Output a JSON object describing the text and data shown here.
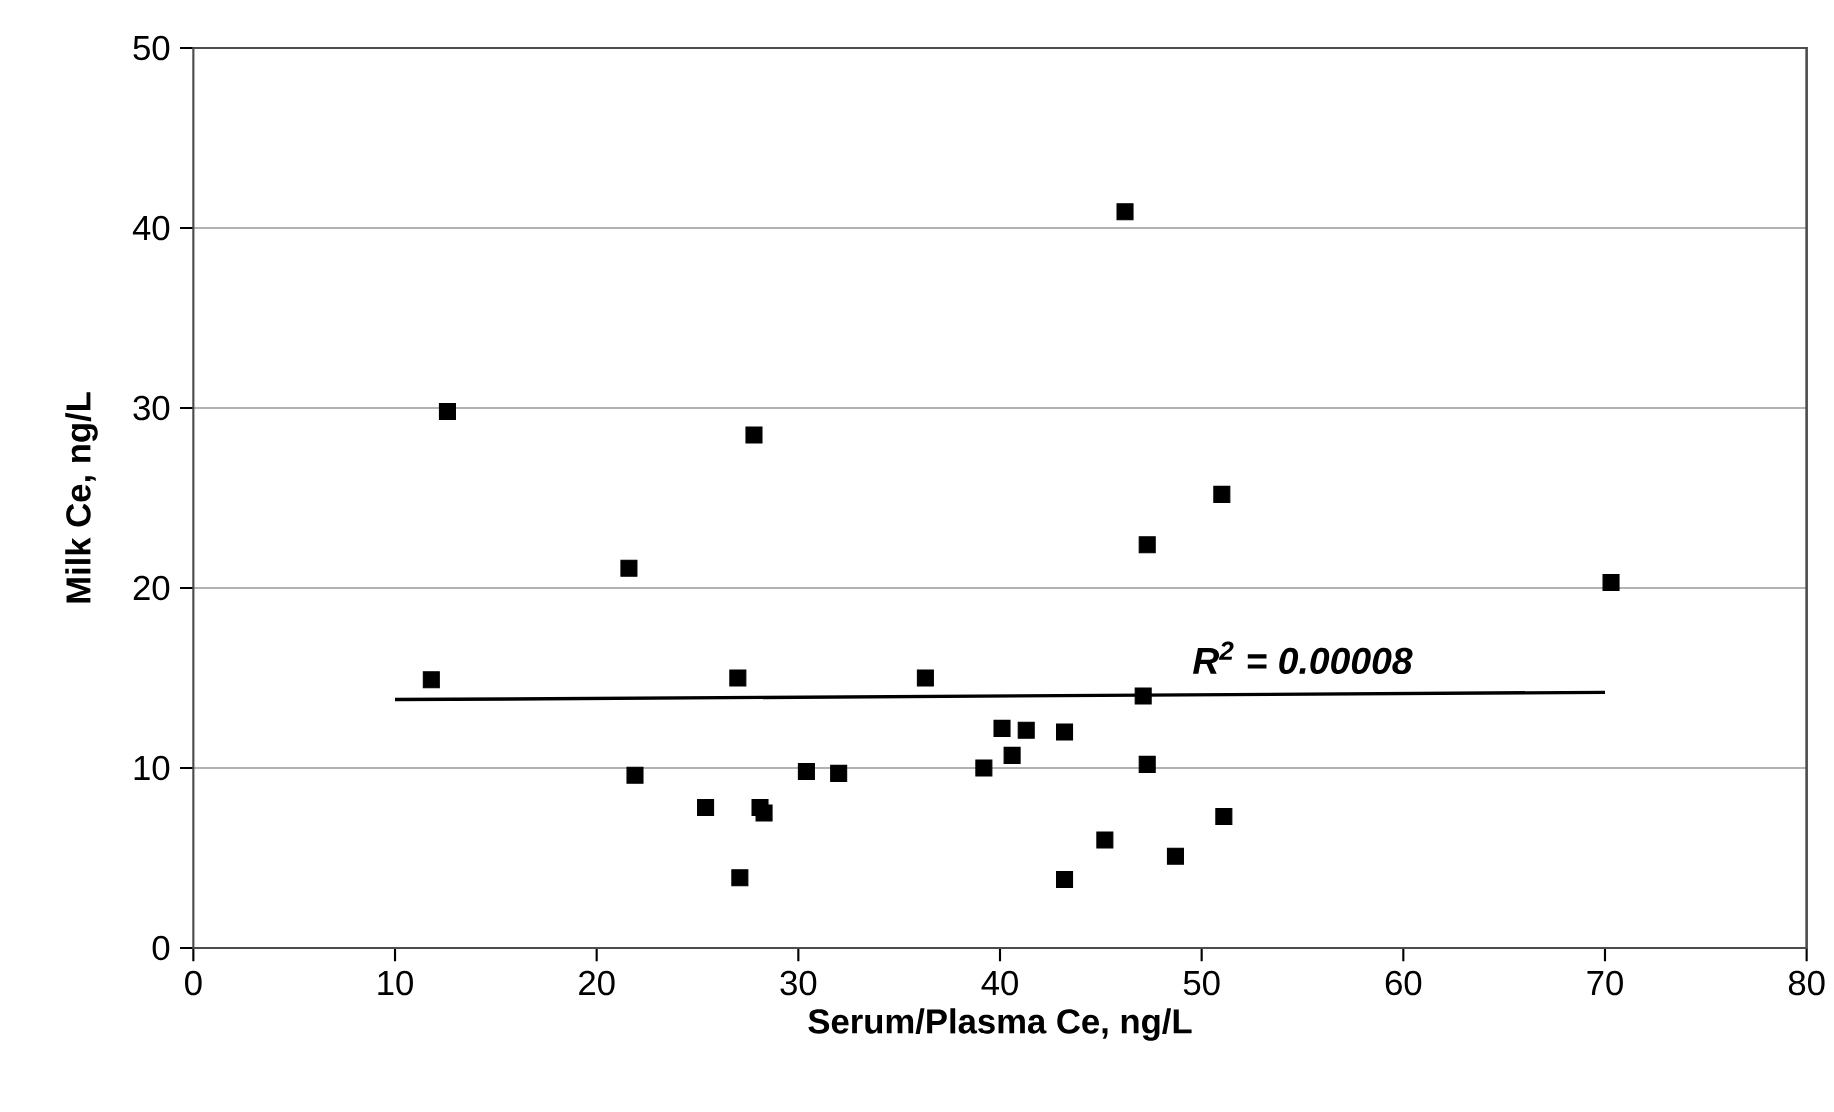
{
  "chart_data": {
    "type": "scatter",
    "xlabel": "Serum/Plasma Ce, ng/L",
    "ylabel": "Milk Ce, ng/L",
    "xlim": [
      0,
      80
    ],
    "xticks": [
      0,
      10,
      20,
      30,
      40,
      50,
      60,
      70,
      80
    ],
    "ylim": [
      0,
      50
    ],
    "yticks": [
      0,
      10,
      20,
      30,
      40,
      50
    ],
    "grid": "y",
    "marker": "square",
    "annotations": [
      {
        "text": "R$^{2}$ = 0.00008",
        "x": 55,
        "y": 14.1
      }
    ],
    "series": [
      {
        "color": "#000000",
        "x": [
          12.6,
          27.8,
          21.6,
          11.8,
          27.0,
          36.3,
          21.9,
          30.4,
          32.0,
          25.4,
          28.1,
          28.3,
          27.1,
          39.2,
          46.2,
          51.0,
          47.3,
          70.3,
          47.1,
          40.1,
          41.3,
          43.2,
          40.6,
          47.3,
          51.1,
          45.2,
          48.7,
          43.2
        ],
        "values": [
          29.8,
          28.5,
          21.1,
          14.9,
          15.0,
          15.0,
          9.6,
          9.8,
          9.7,
          7.8,
          7.8,
          7.5,
          3.9,
          10.0,
          40.9,
          25.2,
          22.4,
          20.3,
          14.0,
          12.2,
          12.1,
          12.0,
          10.7,
          10.2,
          7.3,
          6.0,
          5.1,
          3.8
        ]
      },
      {
        "type": "line",
        "color": "#000000",
        "marker": "none",
        "line_style": "solid",
        "x": [
          10,
          70
        ],
        "values": [
          13.8,
          14.2
        ]
      }
    ]
  }
}
